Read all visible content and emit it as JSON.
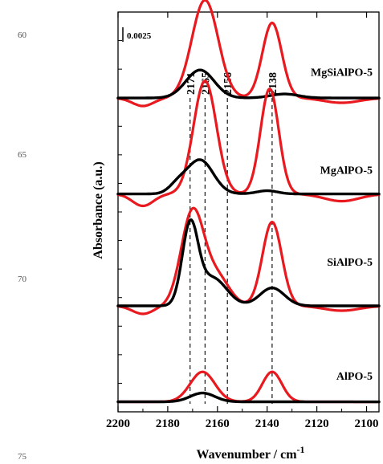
{
  "line_numbers": [
    "60",
    "65",
    "70",
    "75"
  ],
  "chart_data": {
    "type": "line",
    "xlabel": "Wavenumber / cm",
    "xlabel_sup": "-1",
    "ylabel": "Absorbance (a.u.)",
    "x_ticks": [
      2200,
      2180,
      2160,
      2140,
      2120,
      2100
    ],
    "x_range": [
      2200,
      2095
    ],
    "y_range": [
      0,
      1.0
    ],
    "scale_bar": {
      "label": "0.0025"
    },
    "reference_lines": [
      {
        "label": "2171",
        "x": 2171
      },
      {
        "label": "2165",
        "x": 2165
      },
      {
        "label": "2156",
        "x": 2156
      },
      {
        "label": "2138",
        "x": 2138
      }
    ],
    "colors": {
      "red": "#e8191f",
      "black": "#000000",
      "dash": "#000000"
    },
    "samples": [
      {
        "label": "MgSiAlPO-5",
        "baseline": 0.785,
        "label_y": 0.84,
        "series": [
          {
            "color": "red",
            "peaks": [
              {
                "c": 2165,
                "a": 0.245,
                "w": 7.5
              },
              {
                "c": 2138,
                "a": 0.188,
                "w": 5.5
              }
            ],
            "dip": 0.02
          },
          {
            "color": "black",
            "peaks": [
              {
                "c": 2167,
                "a": 0.07,
                "w": 8
              },
              {
                "c": 2133,
                "a": 0.01,
                "w": 8
              }
            ]
          }
        ]
      },
      {
        "label": "MgAlPO-5",
        "baseline": 0.545,
        "label_y": 0.595,
        "series": [
          {
            "color": "red",
            "peaks": [
              {
                "c": 2165,
                "a": 0.283,
                "w": 6.5
              },
              {
                "c": 2139,
                "a": 0.263,
                "w": 5.2
              }
            ],
            "dip": 0.03
          },
          {
            "color": "black",
            "peaks": [
              {
                "c": 2167,
                "a": 0.085,
                "w": 7.5
              },
              {
                "c": 2176,
                "a": 0.02,
                "w": 5
              },
              {
                "c": 2140,
                "a": 0.008,
                "w": 6
              }
            ]
          }
        ]
      },
      {
        "label": "SiAlPO-5",
        "baseline": 0.265,
        "label_y": 0.365,
        "series": [
          {
            "color": "red",
            "peaks": [
              {
                "c": 2170,
                "a": 0.235,
                "w": 6.5
              },
              {
                "c": 2160,
                "a": 0.07,
                "w": 7
              },
              {
                "c": 2138,
                "a": 0.21,
                "w": 5.5
              }
            ],
            "dip": 0.02
          },
          {
            "color": "black",
            "peaks": [
              {
                "c": 2171,
                "a": 0.195,
                "w": 4.5
              },
              {
                "c": 2162,
                "a": 0.07,
                "w": 8
              },
              {
                "c": 2138,
                "a": 0.045,
                "w": 7
              }
            ]
          }
        ]
      },
      {
        "label": "AlPO-5",
        "baseline": 0.025,
        "label_y": 0.08,
        "series": [
          {
            "color": "red",
            "peaks": [
              {
                "c": 2166,
                "a": 0.075,
                "w": 7
              },
              {
                "c": 2138,
                "a": 0.075,
                "w": 5.5
              }
            ]
          },
          {
            "color": "black",
            "peaks": [
              {
                "c": 2166,
                "a": 0.022,
                "w": 7
              }
            ]
          }
        ]
      }
    ]
  }
}
